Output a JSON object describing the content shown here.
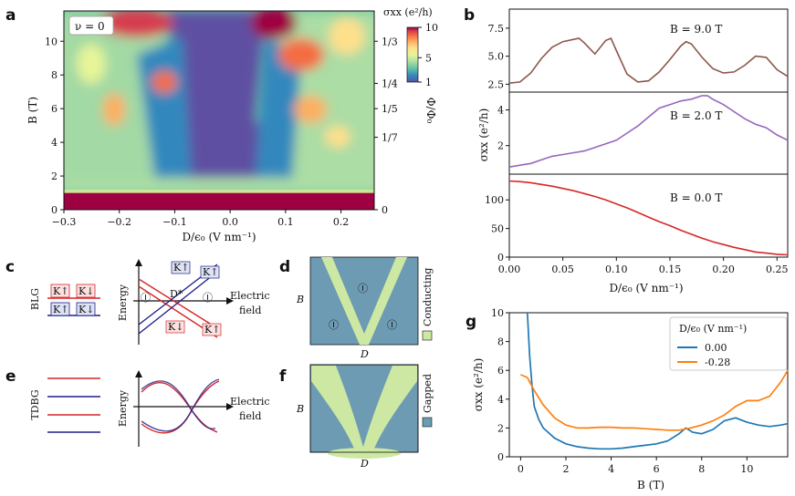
{
  "panels": {
    "a": "a",
    "b": "b",
    "c": "c",
    "d": "d",
    "e": "e",
    "f": "f",
    "g": "g"
  },
  "chart_data": [
    {
      "id": "a",
      "type": "heatmap",
      "inset_label": "ν = 0",
      "xlabel": "D/ϵ₀ (V nm⁻¹)",
      "ylabel": "B (T)",
      "right_label": "Φ/Φ₀",
      "xticks": [
        "−0.3",
        "−0.2",
        "−0.1",
        "0.0",
        "0.1",
        "0.2"
      ],
      "xtick_values": [
        -0.3,
        -0.2,
        -0.1,
        0.0,
        0.1,
        0.2
      ],
      "xlim": [
        -0.3,
        0.26
      ],
      "yticks": [
        "0",
        "2",
        "4",
        "6",
        "8",
        "10"
      ],
      "ytick_values": [
        0,
        2,
        4,
        6,
        8,
        10
      ],
      "ylim": [
        0,
        11.8
      ],
      "right_ticks": [
        "1/3",
        "1/4",
        "1/5",
        "1/7",
        "0"
      ],
      "right_tick_B": [
        10.0,
        7.5,
        6.0,
        4.3,
        0
      ],
      "colorbar": {
        "label": "σxx (e²/h)",
        "ticks": [
          "10",
          "5",
          "1"
        ],
        "tick_values": [
          10,
          5,
          1
        ],
        "range": [
          1,
          10
        ]
      },
      "colormap": [
        "#5e4fa2",
        "#3288bd",
        "#66c2a5",
        "#abdda4",
        "#e6f598",
        "#fee08b",
        "#fdae61",
        "#f46d43",
        "#d53e4f",
        "#9e0142"
      ]
    },
    {
      "id": "b",
      "type": "line",
      "xlabel": "D/ϵ₀ (V nm⁻¹)",
      "ylabel": "σxx (e²/h)",
      "xticks": [
        "0.00",
        "0.05",
        "0.10",
        "0.15",
        "0.20",
        "0.25"
      ],
      "xtick_values": [
        0,
        0.05,
        0.1,
        0.15,
        0.2,
        0.25
      ],
      "xlim": [
        0,
        0.26
      ],
      "subplots": [
        {
          "label": "B = 9.0 T",
          "color": "#8c564b",
          "ylim": [
            1.8,
            9.2
          ],
          "yticks": [
            "2.5",
            "5.0",
            "7.5"
          ],
          "ytick_values": [
            2.5,
            5.0,
            7.5
          ],
          "x": [
            0,
            0.01,
            0.02,
            0.03,
            0.04,
            0.05,
            0.06,
            0.065,
            0.07,
            0.08,
            0.09,
            0.095,
            0.1,
            0.11,
            0.12,
            0.13,
            0.14,
            0.15,
            0.16,
            0.165,
            0.17,
            0.18,
            0.19,
            0.2,
            0.21,
            0.22,
            0.23,
            0.24,
            0.25,
            0.26
          ],
          "y": [
            2.6,
            2.7,
            3.5,
            4.8,
            5.8,
            6.3,
            6.5,
            6.6,
            6.2,
            5.2,
            6.4,
            6.6,
            5.5,
            3.4,
            2.7,
            2.8,
            3.6,
            4.7,
            5.9,
            6.3,
            6.1,
            4.9,
            3.9,
            3.5,
            3.6,
            4.2,
            5.0,
            4.9,
            3.8,
            3.2
          ]
        },
        {
          "label": "B = 2.0 T",
          "color": "#9467bd",
          "ylim": [
            0.4,
            5.0
          ],
          "yticks": [
            "2",
            "4"
          ],
          "ytick_values": [
            2,
            4
          ],
          "x": [
            0,
            0.01,
            0.02,
            0.03,
            0.04,
            0.05,
            0.06,
            0.07,
            0.08,
            0.09,
            0.1,
            0.11,
            0.12,
            0.13,
            0.14,
            0.15,
            0.16,
            0.17,
            0.18,
            0.185,
            0.19,
            0.2,
            0.21,
            0.22,
            0.23,
            0.24,
            0.25,
            0.26
          ],
          "y": [
            0.8,
            0.9,
            1.0,
            1.2,
            1.4,
            1.5,
            1.6,
            1.7,
            1.9,
            2.1,
            2.3,
            2.7,
            3.1,
            3.6,
            4.1,
            4.3,
            4.5,
            4.6,
            4.8,
            4.8,
            4.6,
            4.3,
            3.9,
            3.5,
            3.2,
            3.0,
            2.6,
            2.3
          ]
        },
        {
          "label": "B = 0.0 T",
          "color": "#d62728",
          "ylim": [
            0,
            145
          ],
          "yticks": [
            "0",
            "50",
            "100"
          ],
          "ytick_values": [
            0,
            50,
            100
          ],
          "x": [
            0,
            0.01,
            0.02,
            0.03,
            0.04,
            0.05,
            0.06,
            0.07,
            0.08,
            0.09,
            0.1,
            0.11,
            0.12,
            0.13,
            0.14,
            0.15,
            0.16,
            0.17,
            0.18,
            0.19,
            0.2,
            0.21,
            0.22,
            0.23,
            0.24,
            0.25,
            0.26
          ],
          "y": [
            133,
            132,
            130,
            127,
            124,
            120,
            116,
            111,
            106,
            100,
            93,
            86,
            78,
            70,
            62,
            55,
            47,
            40,
            33,
            27,
            22,
            17,
            13,
            9,
            7,
            5,
            4
          ]
        }
      ]
    },
    {
      "id": "g",
      "type": "line",
      "xlabel": "B (T)",
      "ylabel": "σxx (e²/h)",
      "legend_title": "D/ϵ₀ (V nm⁻¹)",
      "legend_placement": "top-right",
      "xticks": [
        "0",
        "2",
        "4",
        "6",
        "8",
        "10"
      ],
      "xtick_values": [
        0,
        2,
        4,
        6,
        8,
        10
      ],
      "xlim": [
        -0.5,
        11.8
      ],
      "yticks": [
        "0",
        "2",
        "4",
        "6",
        "8",
        "10"
      ],
      "ytick_values": [
        0,
        2,
        4,
        6,
        8,
        10
      ],
      "ylim": [
        0,
        10
      ],
      "series": [
        {
          "name": "0.00",
          "color": "#1f77b4",
          "x": [
            0.3,
            0.4,
            0.5,
            0.6,
            0.8,
            1.0,
            1.5,
            2,
            2.5,
            3,
            3.5,
            4,
            4.5,
            5,
            5.5,
            6,
            6.5,
            7,
            7.3,
            7.6,
            8,
            8.5,
            9,
            9.5,
            10,
            10.5,
            11,
            11.5,
            11.8
          ],
          "y": [
            10,
            7,
            5,
            3.5,
            2.6,
            2.0,
            1.3,
            0.9,
            0.7,
            0.6,
            0.55,
            0.55,
            0.6,
            0.7,
            0.8,
            0.9,
            1.1,
            1.6,
            2.0,
            1.7,
            1.6,
            1.9,
            2.5,
            2.7,
            2.4,
            2.2,
            2.1,
            2.2,
            2.3
          ]
        },
        {
          "name": "-0.28",
          "color": "#ff7f0e",
          "x": [
            0,
            0.3,
            0.6,
            1.0,
            1.5,
            2,
            2.5,
            3,
            3.5,
            4,
            4.5,
            5,
            5.5,
            6,
            6.5,
            7,
            7.5,
            8,
            8.5,
            9,
            9.5,
            10,
            10.5,
            11,
            11.5,
            11.8
          ],
          "y": [
            5.7,
            5.5,
            4.6,
            3.6,
            2.7,
            2.2,
            2.0,
            2.0,
            2.05,
            2.05,
            2.0,
            2.0,
            1.95,
            1.9,
            1.85,
            1.85,
            2.0,
            2.2,
            2.5,
            2.9,
            3.5,
            3.9,
            3.9,
            4.2,
            5.2,
            6.0
          ]
        }
      ]
    }
  ],
  "schematics": {
    "c": {
      "row_label": "BLG",
      "energy_label": "Energy",
      "field_label_1": "Electric",
      "field_label_2": "field",
      "point_label": "D*",
      "region_1": "Ⓘ",
      "region_2": "Ⓘ",
      "band_labels_top": [
        "K↑",
        "K↓"
      ],
      "band_labels_bottom": [
        "K↑",
        "K↓"
      ],
      "line_labels": [
        "K↑",
        "K↑",
        "K↓",
        "K↑"
      ],
      "colors": {
        "red": "#d62728",
        "blue": "#1f1f8c"
      }
    },
    "d": {
      "xlabel": "D",
      "ylabel": "B",
      "legend": "Conducting",
      "region_I": "Ⓘ",
      "region_II_left": "Ⓘ",
      "region_II_right": "Ⓘ",
      "colors": {
        "bg": "#6c9bb3",
        "cond": "#cce8a2"
      }
    },
    "e": {
      "row_label": "TDBG",
      "energy_label": "Energy",
      "field_label_1": "Electric",
      "field_label_2": "field"
    },
    "f": {
      "xlabel": "D",
      "ylabel": "B",
      "legend": "Gapped"
    }
  }
}
